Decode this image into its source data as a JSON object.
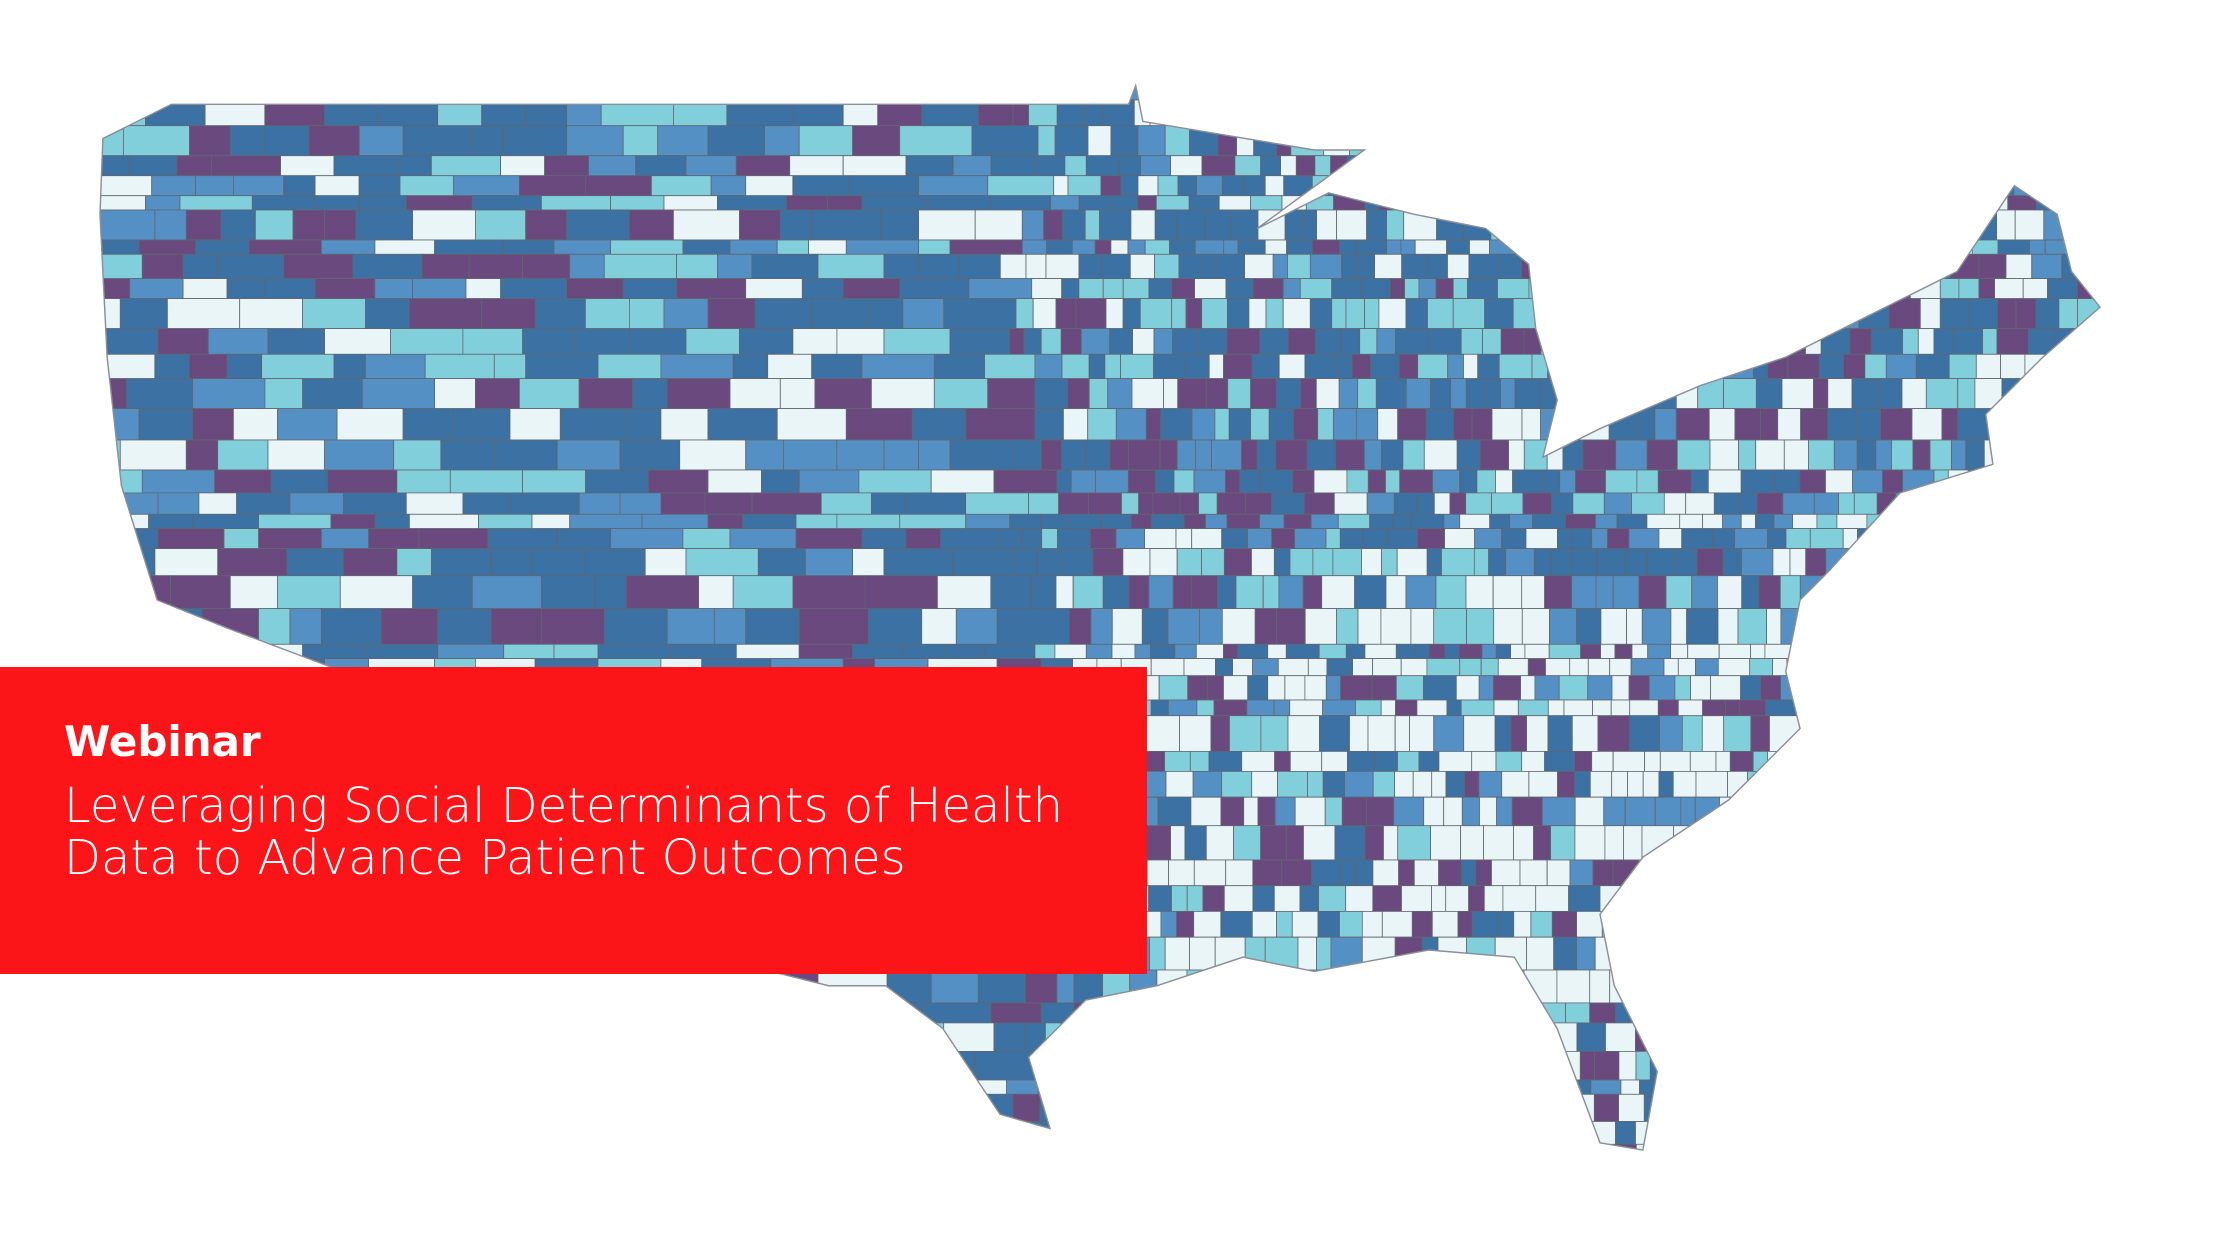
{
  "banner": {
    "label": "Webinar",
    "title_lines": [
      "Leveraging Social Determinants of Health",
      "Data to Advance Patient Outcomes"
    ]
  }
}
